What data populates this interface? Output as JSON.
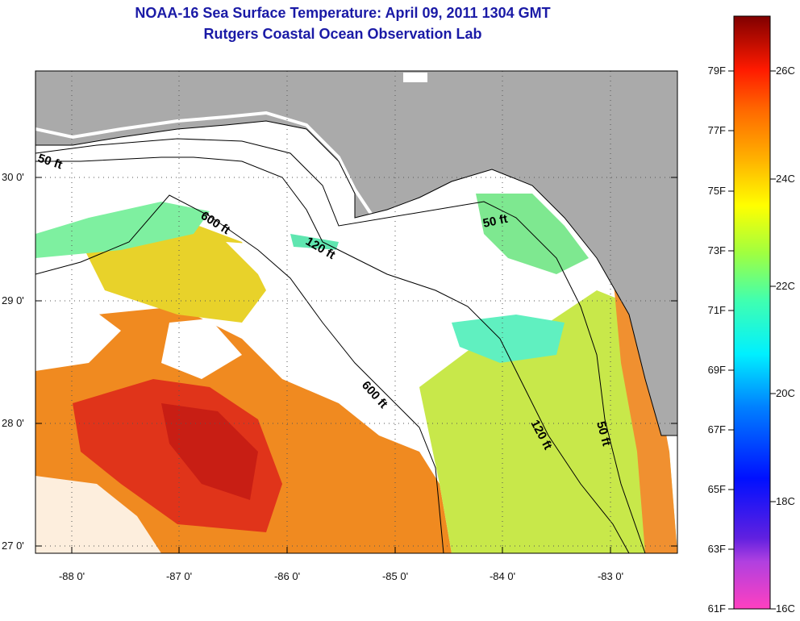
{
  "title": "NOAA-16 Sea Surface Temperature:  April 09, 2011 1304 GMT",
  "subtitle": "Rutgers Coastal Ocean Observation Lab",
  "map": {
    "lat_labels": [
      "30 0'",
      "29 0'",
      "28 0'",
      "27 0'"
    ],
    "lon_labels": [
      "-88 0'",
      "-87 0'",
      "-86 0'",
      "-85 0'",
      "-84 0'",
      "-83 0'"
    ],
    "contour_labels": [
      "50 ft",
      "600 ft",
      "120 ft",
      "50 ft",
      "600 ft",
      "120 ft",
      "50 ft"
    ],
    "colors": {
      "land": "#aaaaaa",
      "cloud": "#ffffff",
      "warm": "#e83a12",
      "cool": "#66ffcc"
    }
  },
  "colorbar": {
    "fahrenheit": [
      "79F",
      "77F",
      "75F",
      "73F",
      "71F",
      "69F",
      "67F",
      "65F",
      "63F",
      "61F"
    ],
    "celsius": [
      "26C",
      "24C",
      "22C",
      "20C",
      "18C",
      "16C"
    ],
    "range_c": [
      16,
      27
    ]
  }
}
